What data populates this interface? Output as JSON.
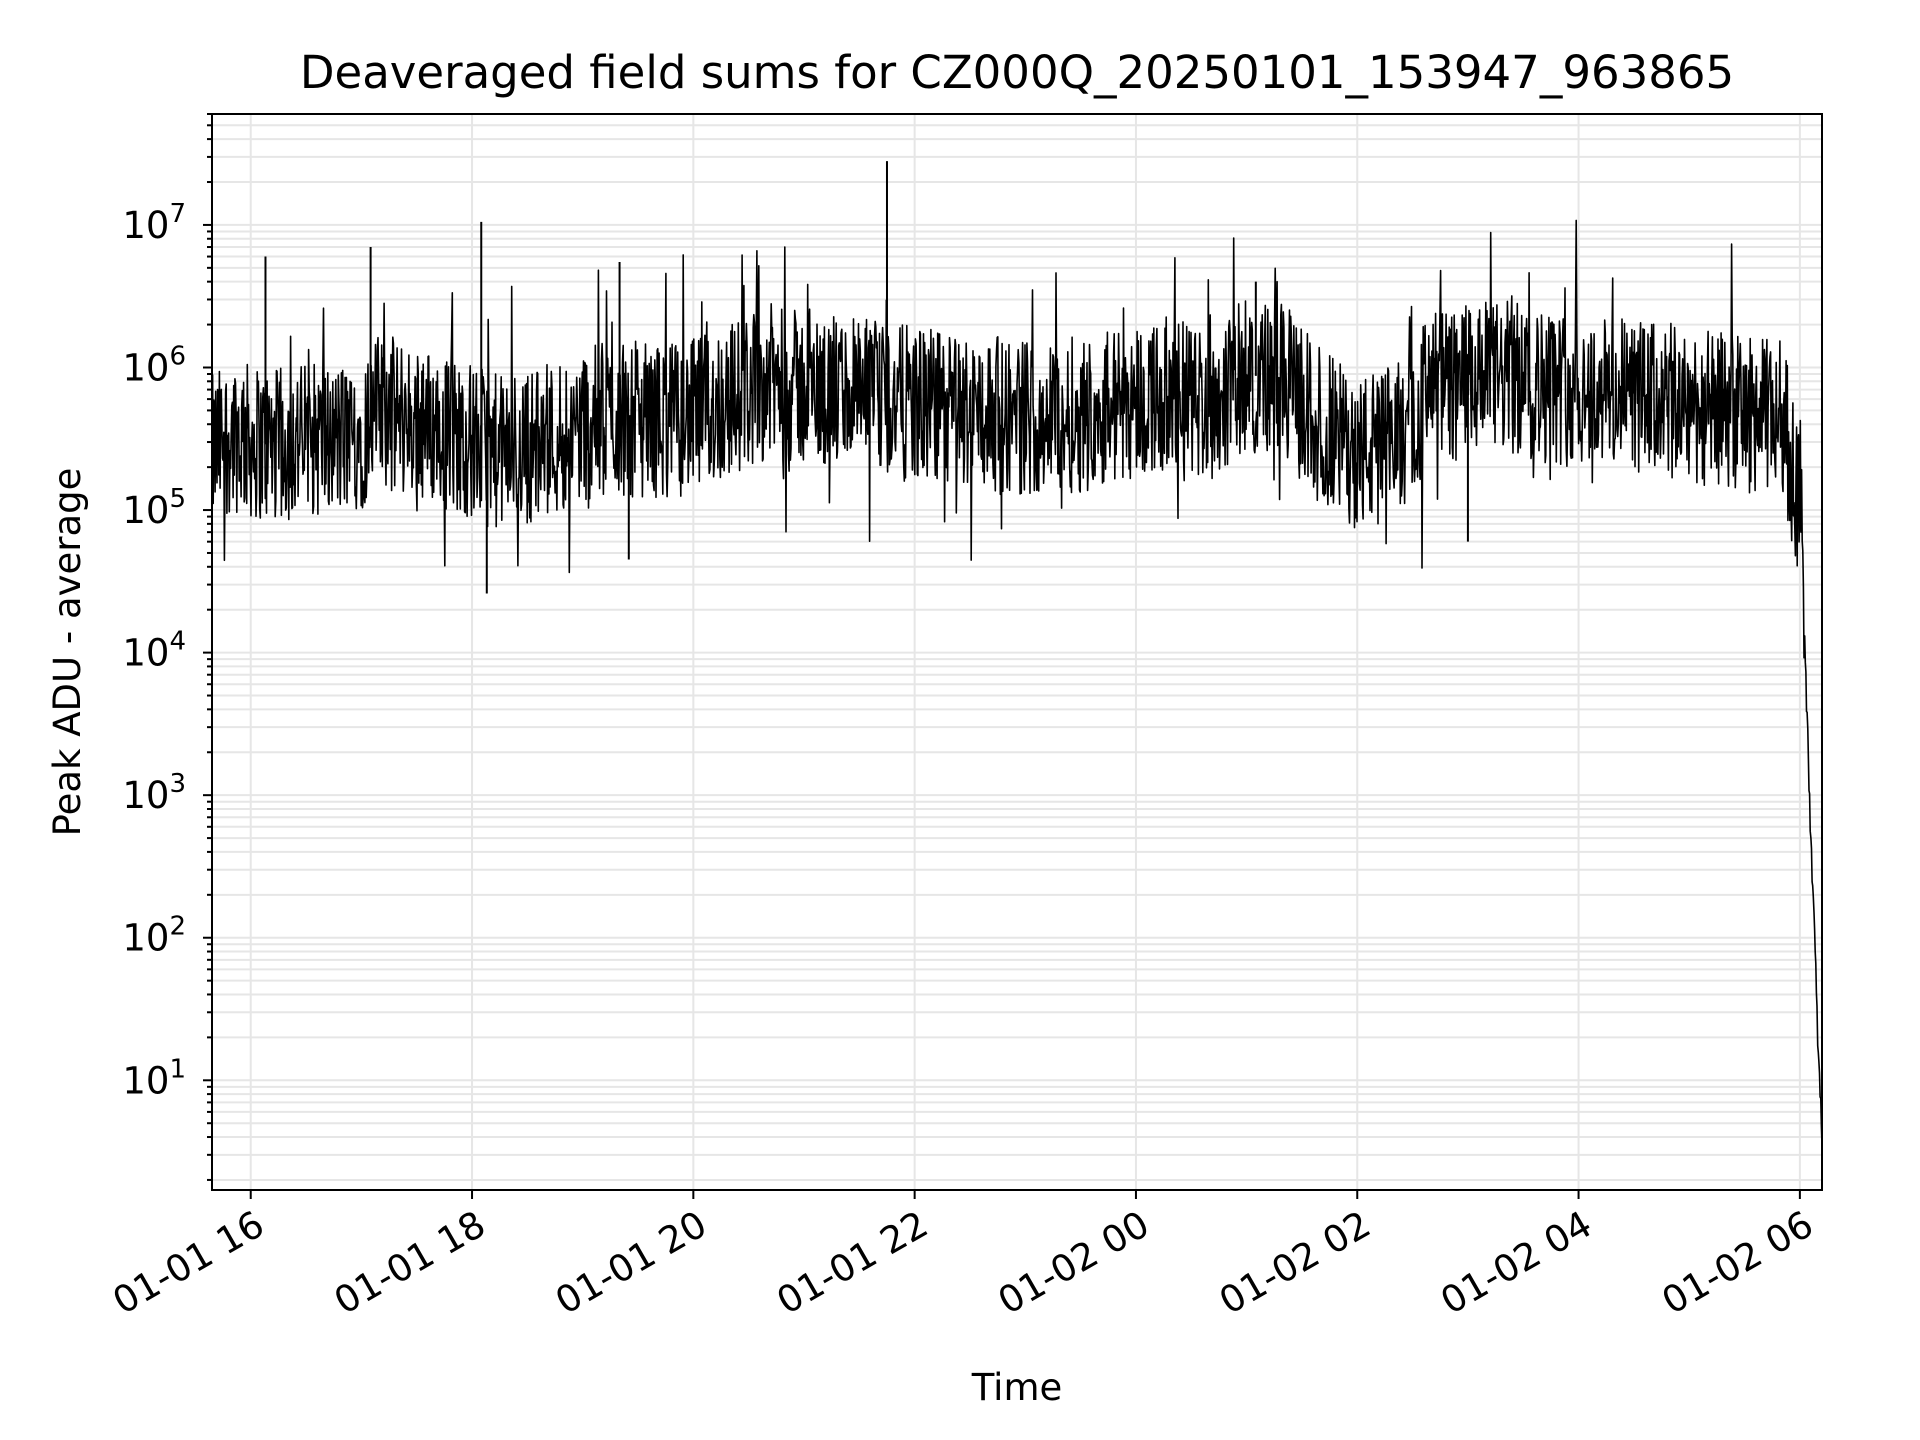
{
  "chart_data": {
    "type": "line",
    "title": "Deaveraged field sums for CZ000Q_20250101_153947_963865",
    "xlabel": "Time",
    "ylabel": "Peak ADU - average",
    "y_scale": "log",
    "xlim": [
      "2025-01-01 15:39",
      "2025-01-02 06:12"
    ],
    "ylim": [
      1.7,
      60000000
    ],
    "x_ticks": [
      "01-01 16",
      "01-01 18",
      "01-01 20",
      "01-01 22",
      "01-02 00",
      "01-02 02",
      "01-02 04",
      "01-02 06"
    ],
    "y_ticks": [
      {
        "base": "10",
        "exp": "1"
      },
      {
        "base": "10",
        "exp": "2"
      },
      {
        "base": "10",
        "exp": "3"
      },
      {
        "base": "10",
        "exp": "4"
      },
      {
        "base": "10",
        "exp": "5"
      },
      {
        "base": "10",
        "exp": "6"
      },
      {
        "base": "10",
        "exp": "7"
      }
    ],
    "grid": "major and minor",
    "line_color": "#000000",
    "grid_color": "#e6e6e6",
    "series": [
      {
        "x": [
          "2025-01-01 15:39",
          "2025-01-01 15:50",
          "2025-01-01 16:00",
          "2025-01-01 16:15",
          "2025-01-01 16:30",
          "2025-01-01 16:45",
          "2025-01-01 17:00",
          "2025-01-01 17:10",
          "2025-01-01 17:20",
          "2025-01-01 17:40",
          "2025-01-01 18:00",
          "2025-01-01 18:15",
          "2025-01-01 18:30",
          "2025-01-01 18:45",
          "2025-01-01 19:00",
          "2025-01-01 19:20",
          "2025-01-01 19:40",
          "2025-01-01 20:00",
          "2025-01-01 20:20",
          "2025-01-01 20:40",
          "2025-01-01 21:00",
          "2025-01-01 21:20",
          "2025-01-01 21:40",
          "2025-01-01 22:00",
          "2025-01-01 22:20",
          "2025-01-01 22:40",
          "2025-01-01 23:00",
          "2025-01-01 23:20",
          "2025-01-01 23:40",
          "2025-01-02 00:00",
          "2025-01-02 00:20",
          "2025-01-02 00:40",
          "2025-01-02 01:00",
          "2025-01-02 01:20",
          "2025-01-02 01:40",
          "2025-01-02 02:00",
          "2025-01-02 02:20",
          "2025-01-02 02:40",
          "2025-01-02 03:00",
          "2025-01-02 03:20",
          "2025-01-02 03:40",
          "2025-01-02 04:00",
          "2025-01-02 04:20",
          "2025-01-02 04:40",
          "2025-01-02 05:00",
          "2025-01-02 05:20",
          "2025-01-02 05:40",
          "2025-01-02 05:50",
          "2025-01-02 05:56",
          "2025-01-02 06:00",
          "2025-01-02 06:02",
          "2025-01-02 06:04",
          "2025-01-02 06:06",
          "2025-01-02 06:08",
          "2025-01-02 06:10",
          "2025-01-02 06:12"
        ],
        "values": [
          250000,
          350000,
          300000,
          280000,
          320000,
          300000,
          350000,
          500000,
          450000,
          380000,
          300000,
          250000,
          280000,
          320000,
          400000,
          450000,
          420000,
          450000,
          600000,
          800000,
          700000,
          650000,
          600000,
          550000,
          500000,
          480000,
          450000,
          450000,
          500000,
          600000,
          650000,
          550000,
          900000,
          800000,
          400000,
          250000,
          300000,
          700000,
          800000,
          850000,
          750000,
          700000,
          650000,
          600000,
          550000,
          500000,
          450000,
          500000,
          200000,
          100000,
          30000,
          3000,
          500,
          100,
          15,
          4
        ]
      }
    ],
    "spikes": [
      {
        "x": "2025-01-01 16:08",
        "value": 6000000
      },
      {
        "x": "2025-01-01 17:05",
        "value": 7000000
      },
      {
        "x": "2025-01-01 18:05",
        "value": 10500000
      },
      {
        "x": "2025-01-01 18:08",
        "value": 26000
      },
      {
        "x": "2025-01-01 19:20",
        "value": 5500000
      },
      {
        "x": "2025-01-01 19:25",
        "value": 45000
      },
      {
        "x": "2025-01-01 21:45",
        "value": 28000000
      },
      {
        "x": "2025-01-02 01:05",
        "value": 4000000
      },
      {
        "x": "2025-01-02 03:00",
        "value": 60000
      }
    ]
  }
}
